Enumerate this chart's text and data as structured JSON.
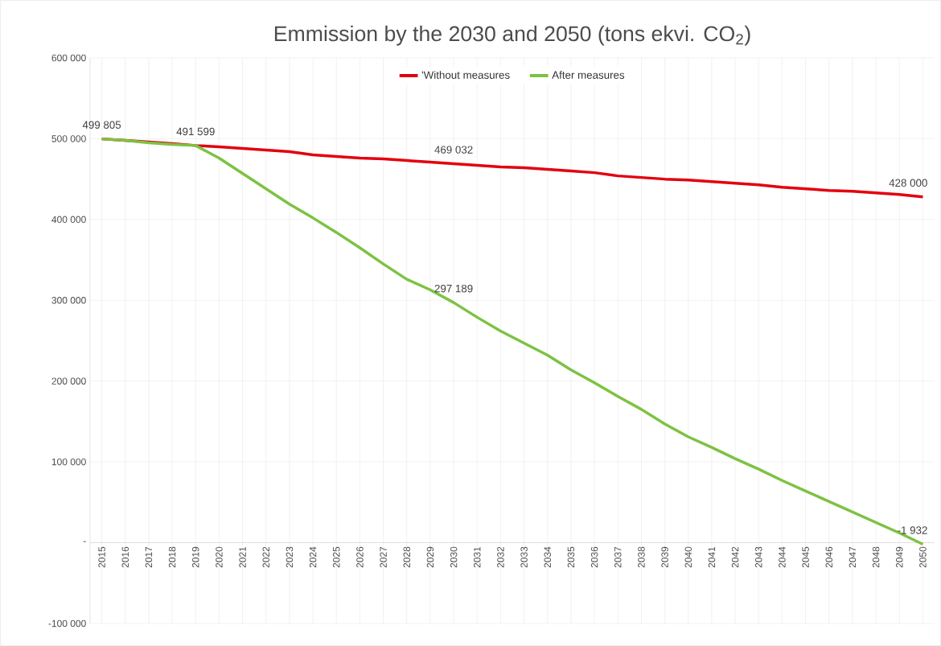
{
  "chart_data": {
    "type": "line",
    "title": "Emmission  by the 2030 and 2050 (tons ekvi. CO$_{2}$)",
    "categories": [
      "2015",
      "2016",
      "2017",
      "2018",
      "2019",
      "2020",
      "2021",
      "2022",
      "2023",
      "2024",
      "2025",
      "2026",
      "2027",
      "2028",
      "2029",
      "2030",
      "2031",
      "2032",
      "2033",
      "2034",
      "2035",
      "2036",
      "2037",
      "2038",
      "2039",
      "2040",
      "2041",
      "2042",
      "2043",
      "2044",
      "2045",
      "2046",
      "2047",
      "2048",
      "2049",
      "2050"
    ],
    "series": [
      {
        "name": "'Without measures",
        "color": "#e3000f",
        "values": [
          499805,
          498000,
          496000,
          494000,
          491599,
          490000,
          488000,
          486000,
          484000,
          480000,
          478000,
          476000,
          475000,
          473000,
          471000,
          469032,
          467000,
          465000,
          464000,
          462000,
          460000,
          458000,
          454000,
          452000,
          450000,
          449000,
          447000,
          445000,
          443000,
          440000,
          438000,
          436000,
          435000,
          433000,
          431000,
          428000
        ],
        "value_labels": [
          "499 805",
          null,
          null,
          null,
          "491 599",
          null,
          null,
          null,
          null,
          null,
          null,
          null,
          null,
          null,
          null,
          "469 032",
          null,
          null,
          null,
          null,
          null,
          null,
          null,
          null,
          null,
          null,
          null,
          null,
          null,
          null,
          null,
          null,
          null,
          null,
          null,
          "428 000"
        ]
      },
      {
        "name": "After measures",
        "color": "#7dc242",
        "values": [
          499805,
          498000,
          495000,
          493000,
          491599,
          476000,
          457000,
          438000,
          419000,
          402000,
          384000,
          365000,
          345000,
          326000,
          313000,
          297189,
          279000,
          262000,
          247000,
          232000,
          214000,
          198000,
          181000,
          165000,
          147000,
          131000,
          118000,
          104000,
          91000,
          77000,
          64000,
          51000,
          38000,
          25000,
          12000,
          -1932
        ],
        "value_labels": [
          null,
          null,
          null,
          null,
          null,
          null,
          null,
          null,
          null,
          null,
          null,
          null,
          null,
          null,
          null,
          "297 189",
          null,
          null,
          null,
          null,
          null,
          null,
          null,
          null,
          null,
          null,
          null,
          null,
          null,
          null,
          null,
          null,
          null,
          null,
          null,
          "-1 932"
        ]
      }
    ],
    "ylim": [
      -100000,
      600000
    ],
    "yticks": [
      {
        "value": -100000,
        "label": "-100 000"
      },
      {
        "value": 0,
        "label": "-"
      },
      {
        "value": 100000,
        "label": "100 000"
      },
      {
        "value": 200000,
        "label": "200 000"
      },
      {
        "value": 300000,
        "label": "300 000"
      },
      {
        "value": 400000,
        "label": "400 000"
      },
      {
        "value": 500000,
        "label": "500 000"
      },
      {
        "value": 600000,
        "label": "600 000"
      }
    ],
    "grid": true,
    "legend": "top",
    "marker": "none",
    "line_style": "solid"
  }
}
